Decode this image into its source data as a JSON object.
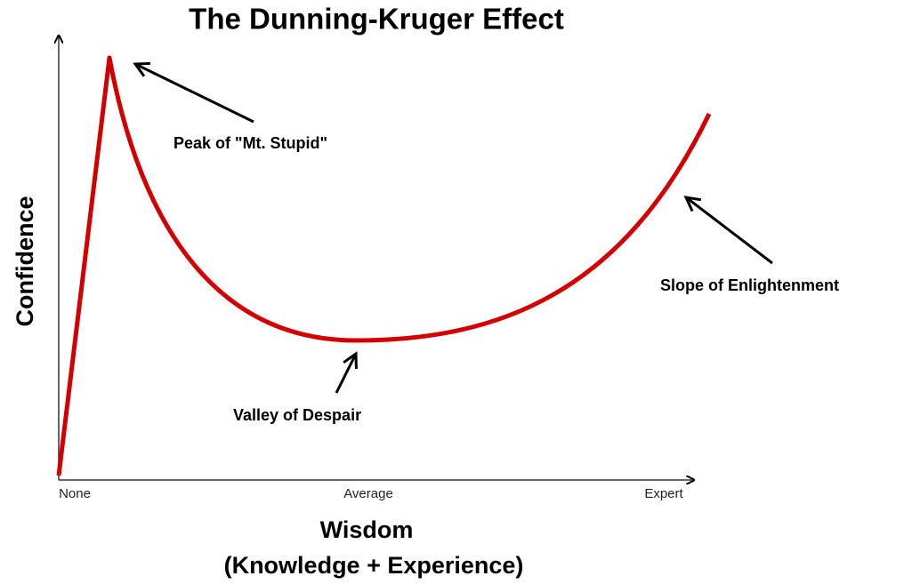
{
  "title": "The Dunning-Kruger Effect",
  "y_axis": {
    "label": "Confidence"
  },
  "x_axis": {
    "ticks": [
      "None",
      "Average",
      "Expert"
    ],
    "label": "Wisdom",
    "sublabel": "(Knowledge + Experience)"
  },
  "annotations": [
    "Peak of \"Mt. Stupid\"",
    "Valley of Despair",
    "Slope of Enlightenment"
  ]
}
